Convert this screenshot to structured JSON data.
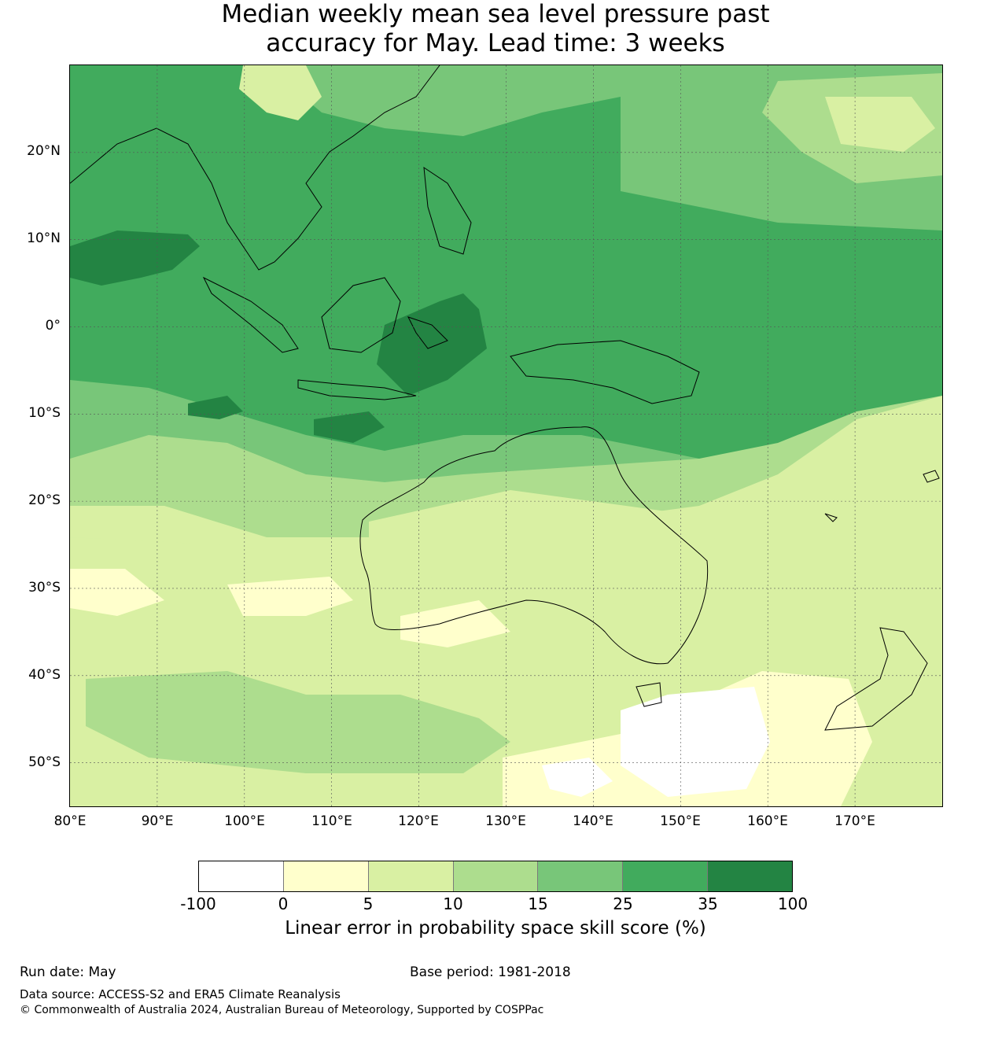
{
  "title_line1": "Median weekly mean sea level pressure past",
  "title_line2": "accuracy for May. Lead time: 3 weeks",
  "map": {
    "lon_range": [
      80,
      180
    ],
    "lat_range": [
      -55,
      30
    ],
    "lat_ticks": [
      "20°N",
      "10°N",
      "0°",
      "10°S",
      "20°S",
      "30°S",
      "40°S",
      "50°S"
    ],
    "lon_ticks": [
      "80°E",
      "90°E",
      "100°E",
      "110°E",
      "120°E",
      "130°E",
      "140°E",
      "150°E",
      "160°E",
      "170°E"
    ]
  },
  "colorbar": {
    "colors": [
      "#ffffff",
      "#ffffcc",
      "#d9f0a3",
      "#addd8e",
      "#78c679",
      "#41ab5d",
      "#238443"
    ],
    "ticks": [
      "-100",
      "0",
      "5",
      "10",
      "15",
      "25",
      "35",
      "100"
    ],
    "label": "Linear error in probability space skill score (%)"
  },
  "footer": {
    "run_date": "Run date: May",
    "base_period": "Base period: 1981-2018",
    "data_source": "Data source: ACCESS-S2 and ERA5 Climate Reanalysis",
    "copyright": "© Commonwealth of Australia 2024, Australian Bureau of Meteorology, Supported by COSPPac"
  }
}
